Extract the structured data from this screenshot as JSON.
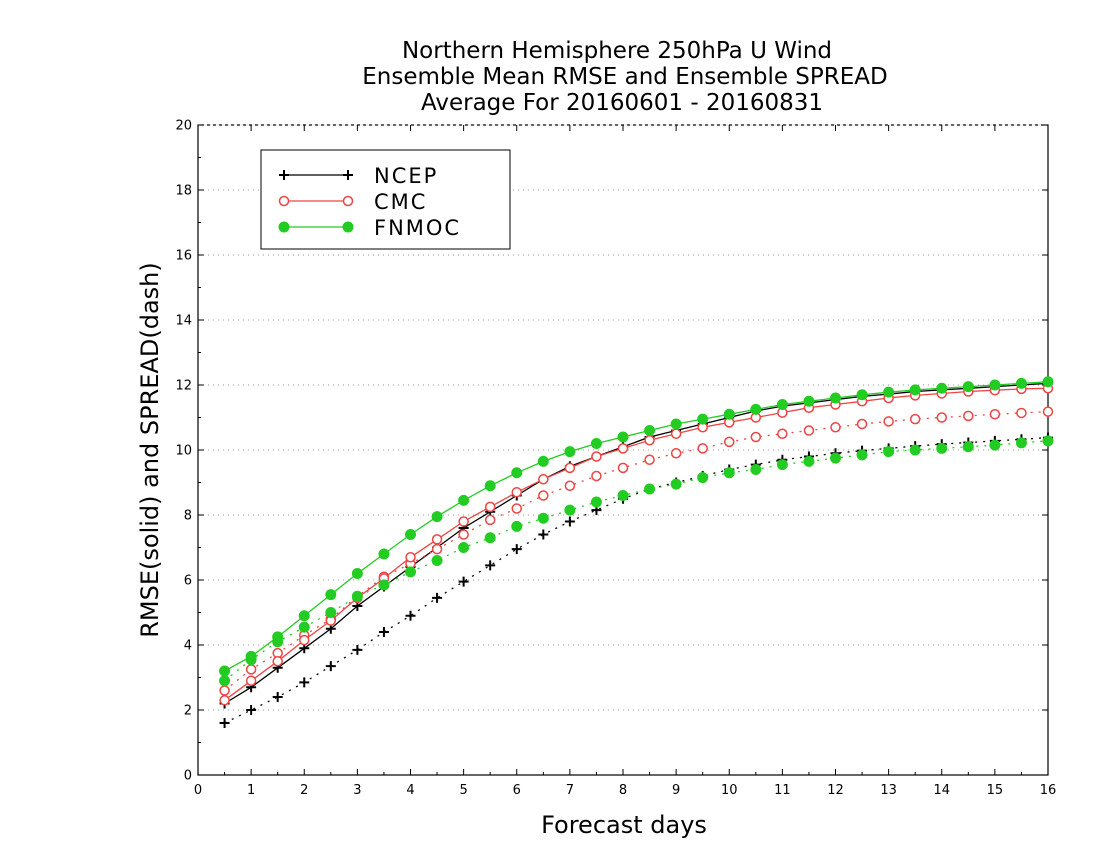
{
  "chart_data": {
    "type": "line",
    "title": [
      "Northern Hemisphere 250hPa U Wind",
      "Ensemble Mean RMSE and Ensemble SPREAD",
      "Average For 20160601 - 20160831"
    ],
    "xlabel": "Forecast days",
    "ylabel": "RMSE(solid) and SPREAD(dash)",
    "xlim": [
      0,
      16
    ],
    "ylim": [
      0,
      20
    ],
    "x_ticks": [
      0,
      1,
      2,
      3,
      4,
      5,
      6,
      7,
      8,
      9,
      10,
      11,
      12,
      13,
      14,
      15,
      16
    ],
    "y_ticks": [
      0,
      2,
      4,
      6,
      8,
      10,
      12,
      14,
      16,
      18,
      20
    ],
    "grid": "horizontal dotted",
    "legend_position": "top-left",
    "x": [
      0.5,
      1,
      1.5,
      2,
      2.5,
      3,
      3.5,
      4,
      4.5,
      5,
      5.5,
      6,
      6.5,
      7,
      7.5,
      8,
      8.5,
      9,
      9.5,
      10,
      10.5,
      11,
      11.5,
      12,
      12.5,
      13,
      13.5,
      14,
      14.5,
      15,
      15.5,
      16
    ],
    "series": [
      {
        "name": "NCEP",
        "color": "#000000",
        "marker": "plus",
        "rmse": [
          2.2,
          2.7,
          3.3,
          3.9,
          4.5,
          5.2,
          5.8,
          6.4,
          7.0,
          7.6,
          8.1,
          8.6,
          9.1,
          9.5,
          9.8,
          10.1,
          10.4,
          10.6,
          10.8,
          11.0,
          11.2,
          11.35,
          11.45,
          11.55,
          11.65,
          11.72,
          11.8,
          11.85,
          11.9,
          11.95,
          12.0,
          12.05
        ],
        "spread": [
          1.6,
          2.0,
          2.4,
          2.85,
          3.35,
          3.85,
          4.4,
          4.9,
          5.45,
          5.95,
          6.45,
          6.95,
          7.4,
          7.8,
          8.15,
          8.5,
          8.8,
          9.0,
          9.2,
          9.4,
          9.55,
          9.7,
          9.8,
          9.9,
          9.98,
          10.05,
          10.12,
          10.18,
          10.23,
          10.28,
          10.33,
          10.38
        ]
      },
      {
        "name": "CMC",
        "color": "#ee4444",
        "marker": "open-circle",
        "rmse": [
          2.3,
          2.9,
          3.5,
          4.15,
          4.75,
          5.45,
          6.05,
          6.7,
          7.25,
          7.8,
          8.25,
          8.7,
          9.1,
          9.45,
          9.8,
          10.05,
          10.3,
          10.5,
          10.7,
          10.85,
          11.0,
          11.15,
          11.3,
          11.4,
          11.5,
          11.6,
          11.68,
          11.74,
          11.8,
          11.84,
          11.88,
          11.9
        ],
        "spread": [
          2.6,
          3.25,
          3.75,
          4.3,
          4.8,
          5.5,
          6.1,
          6.5,
          6.95,
          7.4,
          7.85,
          8.2,
          8.6,
          8.9,
          9.2,
          9.45,
          9.7,
          9.9,
          10.05,
          10.25,
          10.4,
          10.5,
          10.6,
          10.7,
          10.8,
          10.88,
          10.95,
          11.0,
          11.05,
          11.1,
          11.14,
          11.18
        ]
      },
      {
        "name": "FNMOC",
        "color": "#22cc22",
        "marker": "filled-circle",
        "rmse": [
          3.2,
          3.65,
          4.25,
          4.9,
          5.55,
          6.2,
          6.8,
          7.4,
          7.95,
          8.45,
          8.9,
          9.3,
          9.65,
          9.95,
          10.2,
          10.4,
          10.6,
          10.8,
          10.95,
          11.1,
          11.25,
          11.4,
          11.5,
          11.6,
          11.7,
          11.78,
          11.85,
          11.9,
          11.95,
          12.0,
          12.05,
          12.1
        ],
        "spread": [
          2.9,
          3.55,
          4.1,
          4.55,
          5.0,
          5.5,
          5.85,
          6.25,
          6.6,
          7.0,
          7.3,
          7.65,
          7.9,
          8.15,
          8.4,
          8.6,
          8.8,
          8.95,
          9.15,
          9.3,
          9.4,
          9.55,
          9.65,
          9.75,
          9.85,
          9.95,
          10.0,
          10.05,
          10.1,
          10.15,
          10.22,
          10.28
        ]
      }
    ]
  }
}
